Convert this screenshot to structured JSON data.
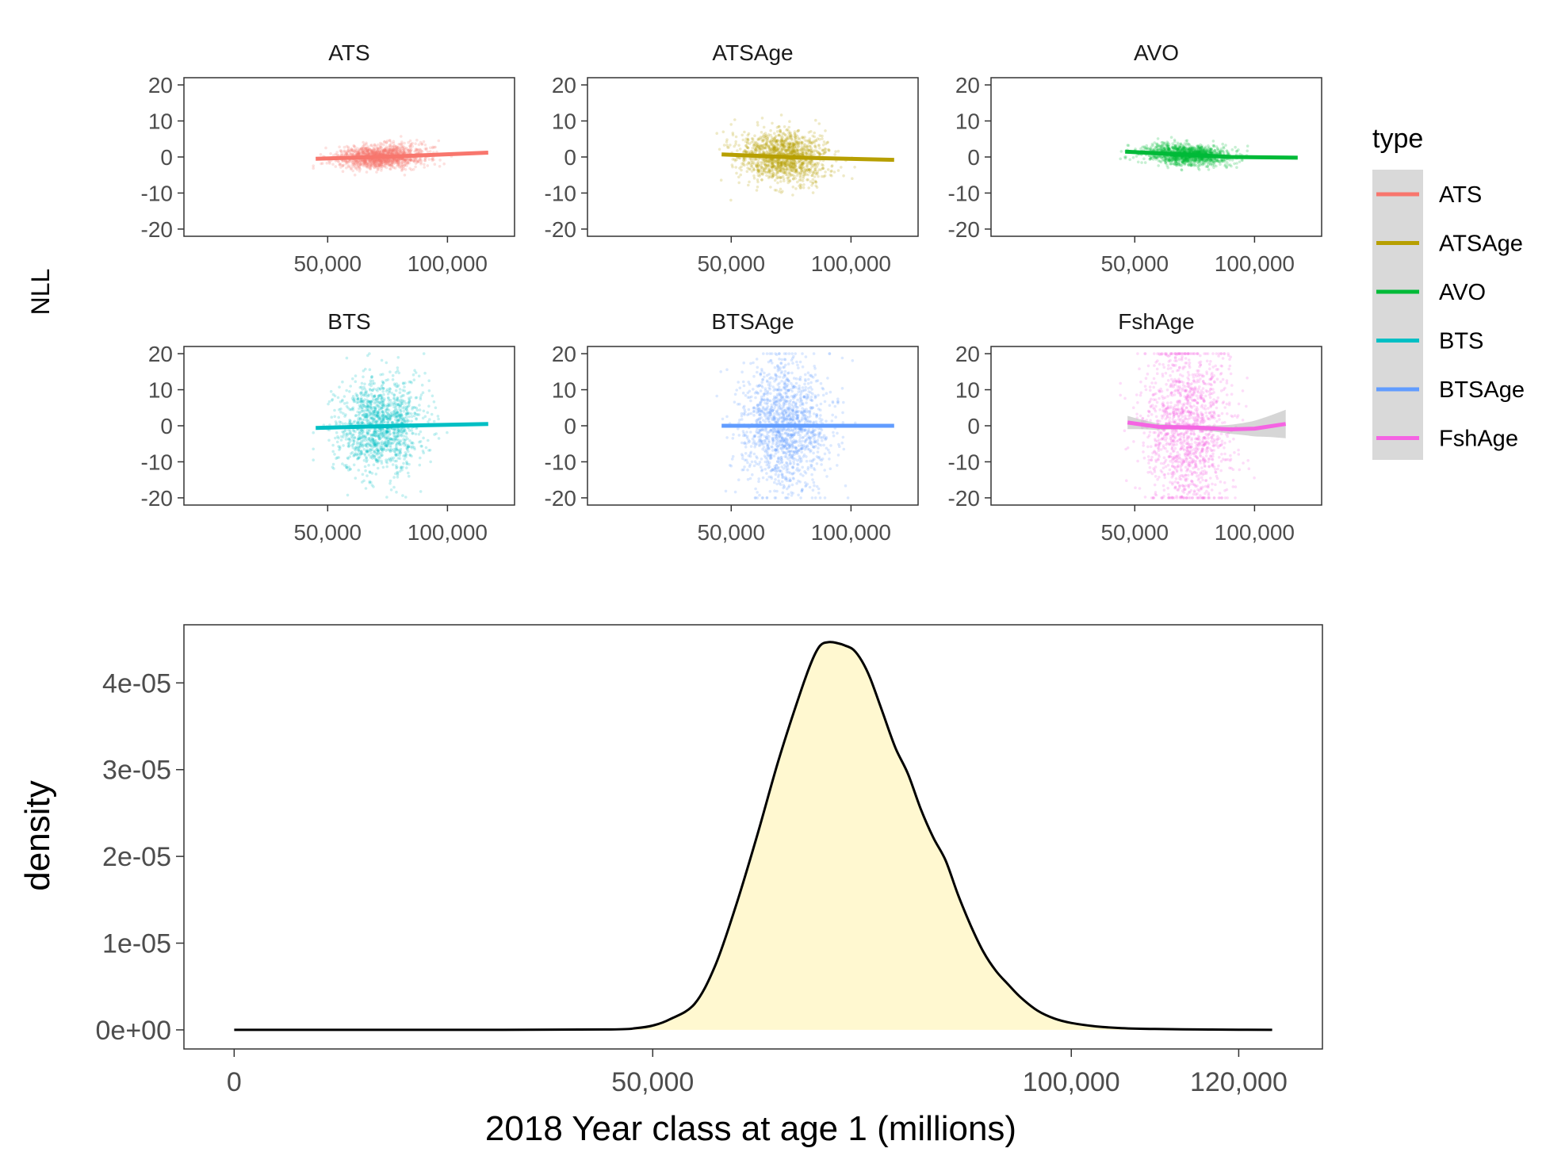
{
  "chart_data": [
    {
      "type": "scatter",
      "ylabel": "NLL",
      "x_ticks": [
        "50,000",
        "100,000"
      ],
      "x_tick_values": [
        50000,
        100000
      ],
      "y_ticks": [
        "20",
        "10",
        "0",
        "-10",
        "-20"
      ],
      "y_tick_values": [
        20,
        10,
        0,
        -10,
        -20
      ],
      "xlim": [
        -10000,
        128000
      ],
      "ylim": [
        -22,
        22
      ],
      "legend": {
        "title": "type",
        "entries": [
          "ATS",
          "ATSAge",
          "AVO",
          "BTS",
          "BTSAge",
          "FshAge"
        ],
        "placement": "right"
      },
      "panels": [
        {
          "name": "ATS",
          "color": "#F8766D",
          "point_spread_sd": 1.6,
          "point_spread_max": 6,
          "x_center": 72000,
          "x_sd": 9000,
          "trend": [
            [
              45000,
              -0.5
            ],
            [
              80000,
              0.2
            ],
            [
              117000,
              1.2
            ]
          ]
        },
        {
          "name": "ATSAge",
          "color": "#B79F00",
          "point_spread_sd": 3.5,
          "point_spread_max": 15,
          "x_center": 72000,
          "x_sd": 9000,
          "trend": [
            [
              46000,
              0.7
            ],
            [
              80000,
              -0.2
            ],
            [
              118000,
              -0.8
            ]
          ]
        },
        {
          "name": "AVO",
          "color": "#00BA38",
          "point_spread_sd": 1.4,
          "point_spread_max": 6,
          "x_center": 72000,
          "x_sd": 9000,
          "trend": [
            [
              46000,
              1.5
            ],
            [
              90000,
              0.0
            ],
            [
              118000,
              -0.2
            ]
          ]
        },
        {
          "name": "BTS",
          "color": "#00BFC4",
          "point_spread_sd": 6.5,
          "point_spread_max": 20,
          "x_center": 72000,
          "x_sd": 9000,
          "trend": [
            [
              45000,
              -0.6
            ],
            [
              80000,
              0.0
            ],
            [
              117000,
              0.5
            ]
          ]
        },
        {
          "name": "BTSAge",
          "color": "#619CFF",
          "point_spread_sd": 9,
          "point_spread_max": 20,
          "x_center": 72000,
          "x_sd": 9000,
          "trend": [
            [
              46000,
              0.0
            ],
            [
              118000,
              0.0
            ]
          ]
        },
        {
          "name": "FshAge",
          "color": "#F564E3",
          "point_spread_sd": 11,
          "point_spread_max": 20,
          "x_center": 72000,
          "x_sd": 9000,
          "ribbon": true,
          "trend": [
            [
              47000,
              0.9
            ],
            [
              60000,
              -0.3
            ],
            [
              75000,
              -0.5
            ],
            [
              90000,
              -1.0
            ],
            [
              100000,
              -0.8
            ],
            [
              113000,
              0.5
            ]
          ]
        }
      ]
    },
    {
      "type": "area",
      "xlabel": "2018 Year class at age 1 (millions)",
      "ylabel": "density",
      "fill": "#FFF8D0",
      "x_ticks": [
        "0",
        "50,000",
        "100,000",
        "120,000"
      ],
      "x_tick_values": [
        0,
        50000,
        100000,
        120000
      ],
      "y_ticks": [
        "0e+00",
        "1e-05",
        "2e-05",
        "3e-05",
        "4e-05"
      ],
      "y_tick_values": [
        0,
        1e-05,
        2e-05,
        3e-05,
        4e-05
      ],
      "xlim": [
        -6000,
        130000
      ],
      "ylim": [
        -2.2e-06,
        4.67e-05
      ],
      "x": [
        0,
        30000,
        45000,
        48000,
        50000,
        52000,
        55000,
        57500,
        60000,
        62500,
        65000,
        67500,
        69000,
        70000,
        71000,
        72000,
        73000,
        74000,
        75000,
        76000,
        77500,
        79000,
        80500,
        82000,
        83500,
        85000,
        86500,
        88000,
        89500,
        91000,
        92500,
        94000,
        96000,
        98000,
        100000,
        103000,
        106000,
        110000,
        115000,
        120000,
        124000
      ],
      "y": [
        0,
        0,
        5e-08,
        2e-07,
        5e-07,
        1.2e-06,
        3e-06,
        7.5e-06,
        1.45e-05,
        2.25e-05,
        3.1e-05,
        3.85e-05,
        4.25e-05,
        4.43e-05,
        4.47e-05,
        4.46e-05,
        4.43e-05,
        4.38e-05,
        4.25e-05,
        4.05e-05,
        3.65e-05,
        3.25e-05,
        2.95e-05,
        2.55e-05,
        2.22e-05,
        1.95e-05,
        1.55e-05,
        1.2e-05,
        9e-06,
        6.8e-06,
        5.2e-06,
        3.7e-06,
        2.2e-06,
        1.3e-06,
        8e-07,
        4e-07,
        2e-07,
        1e-07,
        5e-08,
        2e-08,
        0
      ]
    }
  ]
}
